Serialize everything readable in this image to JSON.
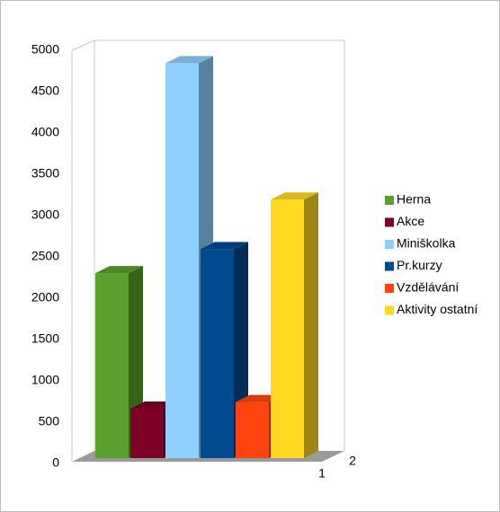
{
  "chart_data": {
    "type": "bar3d",
    "categories": [
      "1"
    ],
    "depth_categories": [
      "2"
    ],
    "series": [
      {
        "name": "Herna",
        "color": "#5aa02c",
        "values": [
          2260
        ]
      },
      {
        "name": "Akce",
        "color": "#7d0026",
        "values": [
          620
        ]
      },
      {
        "name": "Miniškolka",
        "color": "#8ed0ff",
        "values": [
          4800
        ]
      },
      {
        "name": "Pr.kurzy",
        "color": "#004a90",
        "values": [
          2550
        ]
      },
      {
        "name": "Vzdělávání",
        "color": "#ff450d",
        "values": [
          700
        ]
      },
      {
        "name": "Aktivity ostatní",
        "color": "#ffd820",
        "values": [
          3150
        ]
      }
    ],
    "ylim": [
      0,
      5000
    ],
    "yticks": [
      0,
      500,
      1000,
      1500,
      2000,
      2500,
      3000,
      3500,
      4000,
      4500,
      5000
    ],
    "legend": "right"
  }
}
